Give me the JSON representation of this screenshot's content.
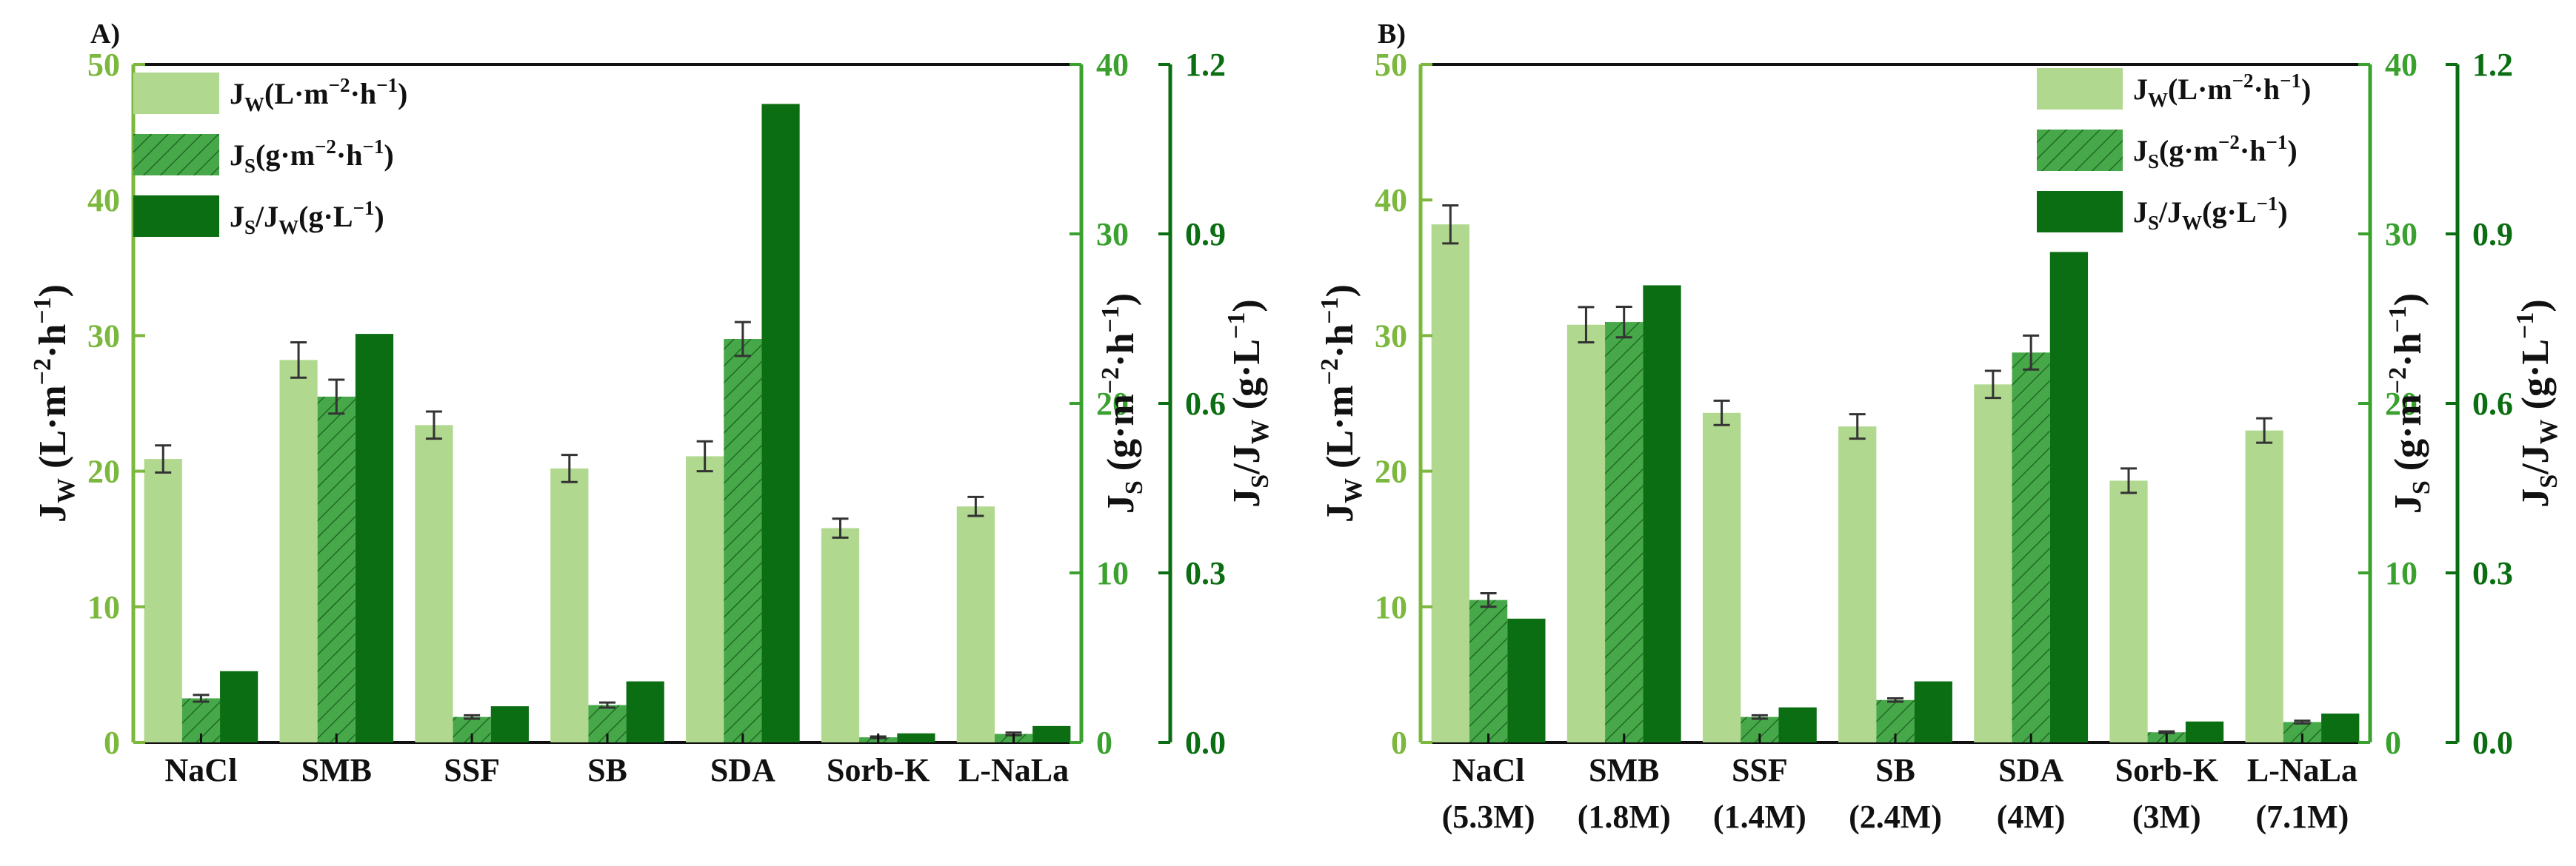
{
  "colors": {
    "jw": "#b1d88f",
    "js_fill": "#47a84a",
    "js_hatch": "#1e6b22",
    "ratio": "#0b6e12",
    "axis_left": "#7bb83d",
    "axis_mid": "#3aa12f",
    "axis_right": "#0b6e12",
    "text": "#111111"
  },
  "chart_data": [
    {
      "panel_label": "A)",
      "type": "bar",
      "categories": [
        "NaCl",
        "SMB",
        "SSF",
        "SB",
        "SDA",
        "Sorb-K",
        "L-NaLa"
      ],
      "series": [
        {
          "name": "Jw",
          "axis": "left",
          "values": [
            20.9,
            28.2,
            23.4,
            20.2,
            21.1,
            15.8,
            17.4
          ],
          "errors": [
            1.0,
            1.3,
            1.0,
            1.0,
            1.1,
            0.7,
            0.7
          ]
        },
        {
          "name": "Js",
          "axis": "middle",
          "values": [
            2.6,
            20.4,
            1.5,
            2.2,
            23.8,
            0.3,
            0.5
          ],
          "errors": [
            0.2,
            1.0,
            0.1,
            0.15,
            1.0,
            0.05,
            0.08
          ]
        },
        {
          "name": "Js/Jw",
          "axis": "right",
          "values": [
            0.126,
            0.723,
            0.064,
            0.108,
            1.13,
            0.016,
            0.029
          ],
          "errors": [
            0,
            0,
            0,
            0,
            0,
            0,
            0
          ]
        }
      ],
      "axes": {
        "left": {
          "ylim": [
            0,
            50
          ],
          "ticks": [
            "0",
            "10",
            "20",
            "30",
            "40",
            "50"
          ]
        },
        "middle": {
          "ylim": [
            0,
            40
          ],
          "ticks": [
            "0",
            "10",
            "20",
            "30",
            "40"
          ]
        },
        "right": {
          "ylim": [
            0,
            1.2
          ],
          "ticks": [
            "0.0",
            "0.3",
            "0.6",
            "0.9",
            "1.2"
          ]
        }
      },
      "legend": {
        "position": "top-left",
        "items": [
          "Jw",
          "Js",
          "Js/Jw"
        ]
      }
    },
    {
      "panel_label": "B)",
      "type": "bar",
      "categories": [
        "NaCl",
        "SMB",
        "SSF",
        "SB",
        "SDA",
        "Sorb-K",
        "L-NaLa"
      ],
      "sublabels": [
        "(5.3M)",
        "(1.8M)",
        "(1.4M)",
        "(2.4M)",
        "(4M)",
        "(3M)",
        "(7.1M)"
      ],
      "series": [
        {
          "name": "Jw",
          "axis": "left",
          "values": [
            38.2,
            30.8,
            24.3,
            23.3,
            26.4,
            19.3,
            23.0
          ],
          "errors": [
            1.4,
            1.3,
            0.9,
            0.9,
            1.0,
            0.9,
            0.9
          ]
        },
        {
          "name": "Js",
          "axis": "middle",
          "values": [
            8.4,
            24.8,
            1.5,
            2.5,
            23.0,
            0.6,
            1.2
          ],
          "errors": [
            0.4,
            0.9,
            0.1,
            0.1,
            1.0,
            0.05,
            0.08
          ]
        },
        {
          "name": "Js/Jw",
          "axis": "right",
          "values": [
            0.219,
            0.809,
            0.062,
            0.108,
            0.868,
            0.037,
            0.051
          ],
          "errors": [
            0,
            0,
            0,
            0,
            0,
            0,
            0
          ]
        }
      ],
      "axes": {
        "left": {
          "ylim": [
            0,
            50
          ],
          "ticks": [
            "0",
            "10",
            "20",
            "30",
            "40",
            "50"
          ]
        },
        "middle": {
          "ylim": [
            0,
            40
          ],
          "ticks": [
            "0",
            "10",
            "20",
            "30",
            "40"
          ]
        },
        "right": {
          "ylim": [
            0,
            1.2
          ],
          "ticks": [
            "0.0",
            "0.3",
            "0.6",
            "0.9",
            "1.2"
          ]
        }
      },
      "legend": {
        "position": "top-right",
        "items": [
          "Jw",
          "Js",
          "Js/Jw"
        ]
      }
    }
  ],
  "labels": {
    "jw_sym": "J",
    "jw_sub": "W",
    "js_sym": "J",
    "js_sub": "S",
    "ratio_slash": "/J",
    "legend_jw_unit_a": "(L·m",
    "legend_jw_unit_exp1": "−2",
    "legend_jw_unit_b": "·h",
    "legend_jw_unit_exp2": "−1",
    "legend_jw_unit_c": ")",
    "legend_js_unit_a": "(g·m",
    "legend_js_unit_exp1": "−2",
    "legend_js_unit_b": "·h",
    "legend_js_unit_exp2": "−1",
    "legend_js_unit_c": ")",
    "legend_ratio_unit_a": "(g·L",
    "legend_ratio_unit_exp": "−1",
    "legend_ratio_unit_c": ")",
    "ylabel_left_unit_a": " (L·m",
    "ylabel_left_unit_exp1": "−2",
    "ylabel_left_unit_b": "·h",
    "ylabel_left_unit_exp2": "−1",
    "ylabel_left_unit_c": ")",
    "ylabel_mid_unit_a": " (g·m",
    "ylabel_mid_unit_exp1": "−2",
    "ylabel_mid_unit_b": "·h",
    "ylabel_mid_unit_exp2": "−1",
    "ylabel_mid_unit_c": ")",
    "ylabel_right_unit_a": " (g·L",
    "ylabel_right_unit_exp": "−1",
    "ylabel_right_unit_c": ")"
  }
}
